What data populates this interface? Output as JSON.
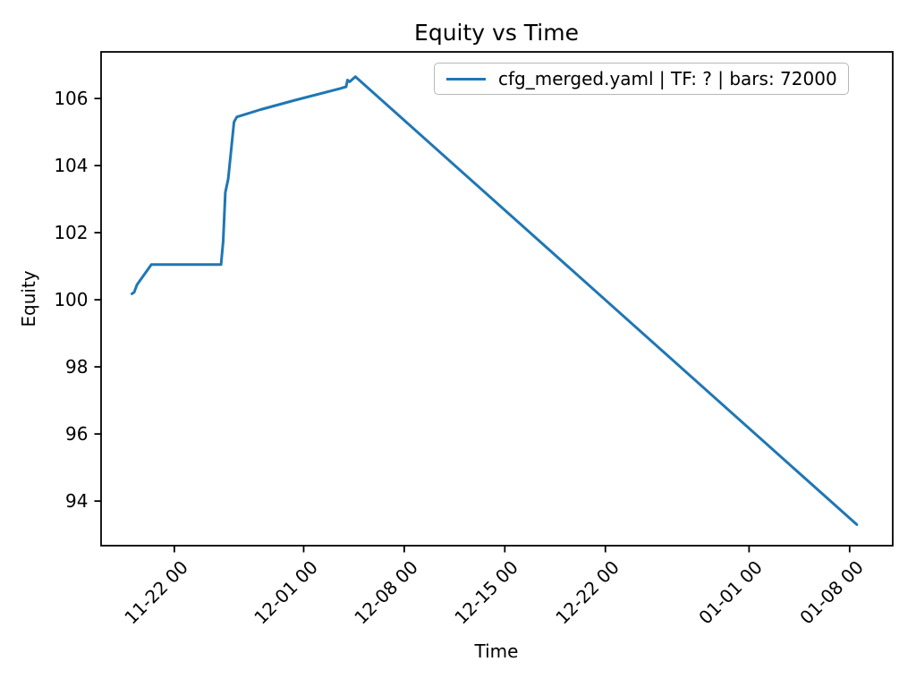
{
  "figure": {
    "title": "Equity vs Time",
    "xlabel": "Time",
    "ylabel": "Equity",
    "background": "#ffffff"
  },
  "legend": {
    "label": "cfg_merged.yaml | TF: ? | bars: 72000",
    "line_color": "#1f77b4",
    "position": "upper right"
  },
  "chart_data": {
    "type": "line",
    "title": "Equity vs Time",
    "xlabel": "Time",
    "ylabel": "Equity",
    "grid": false,
    "legend_position": "upper right",
    "line_color": "#1f77b4",
    "axis_color": "#000000",
    "x_unit_note": "x expressed as days relative to the 11-22 00 tick; tick labels are MM-DD HH",
    "xlim": [
      -5.1,
      50.0
    ],
    "ylim": [
      92.67,
      107.39
    ],
    "x_ticks": {
      "positions": [
        0,
        9,
        16,
        23,
        30,
        40,
        47
      ],
      "labels": [
        "11-22 00",
        "12-01 00",
        "12-08 00",
        "12-15 00",
        "12-22 00",
        "01-01 00",
        "01-08 00"
      ],
      "rotation_deg": 45
    },
    "y_ticks": {
      "positions": [
        94,
        96,
        98,
        100,
        102,
        104,
        106
      ],
      "labels": [
        "94",
        "96",
        "98",
        "100",
        "102",
        "104",
        "106"
      ]
    },
    "series": [
      {
        "name": "cfg_merged.yaml | TF: ? | bars: 72000",
        "color": "#1f77b4",
        "points": [
          [
            -2.95,
            100.18
          ],
          [
            -2.8,
            100.22
          ],
          [
            -2.6,
            100.45
          ],
          [
            -1.6,
            101.05
          ],
          [
            3.25,
            101.05
          ],
          [
            3.4,
            101.75
          ],
          [
            3.55,
            103.2
          ],
          [
            3.65,
            103.4
          ],
          [
            3.75,
            103.6
          ],
          [
            4.15,
            105.3
          ],
          [
            4.35,
            105.45
          ],
          [
            6.0,
            105.67
          ],
          [
            8.4,
            105.95
          ],
          [
            11.55,
            106.3
          ],
          [
            11.95,
            106.35
          ],
          [
            12.05,
            106.55
          ],
          [
            12.2,
            106.5
          ],
          [
            12.6,
            106.65
          ],
          [
            47.5,
            93.3
          ]
        ]
      }
    ]
  }
}
